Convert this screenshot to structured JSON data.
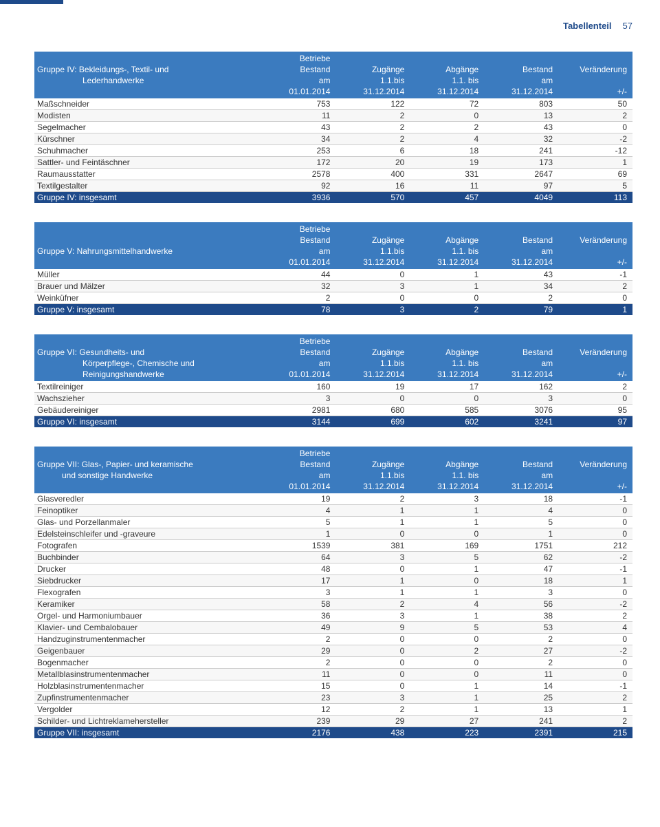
{
  "page": {
    "section": "Tabellenteil",
    "number": "57"
  },
  "header": {
    "betriebe": "Betriebe",
    "bestand_am": "Bestand am",
    "zugaenge": "Zugänge 1.1.bis",
    "abgaenge": "Abgänge 1.1. bis",
    "veraenderung": "Veränderung",
    "d1": "01.01.2014",
    "d2": "31.12.2014",
    "pm": "+/-"
  },
  "groups": [
    {
      "title_lines": [
        "Gruppe IV: Bekleidungs-, Textil- und",
        "Lederhandwerke"
      ],
      "indent_class": "indent",
      "rows": [
        [
          "Maßschneider",
          "753",
          "122",
          "72",
          "803",
          "50"
        ],
        [
          "Modisten",
          "11",
          "2",
          "0",
          "13",
          "2"
        ],
        [
          "Segelmacher",
          "43",
          "2",
          "2",
          "43",
          "0"
        ],
        [
          "Kürschner",
          "34",
          "2",
          "4",
          "32",
          "-2"
        ],
        [
          "Schuhmacher",
          "253",
          "6",
          "18",
          "241",
          "-12"
        ],
        [
          "Sattler- und Feintäschner",
          "172",
          "20",
          "19",
          "173",
          "1"
        ],
        [
          "Raumausstatter",
          "2578",
          "400",
          "331",
          "2647",
          "69"
        ],
        [
          "Textilgestalter",
          "92",
          "16",
          "11",
          "97",
          "5"
        ]
      ],
      "total": [
        "Gruppe IV: insgesamt",
        "3936",
        "570",
        "457",
        "4049",
        "113"
      ]
    },
    {
      "title_lines": [
        "Gruppe V: Nahrungsmittelhandwerke"
      ],
      "indent_class": "",
      "rows": [
        [
          "Müller",
          "44",
          "0",
          "1",
          "43",
          "-1"
        ],
        [
          "Brauer und Mälzer",
          "32",
          "3",
          "1",
          "34",
          "2"
        ],
        [
          "Weinküfner",
          "2",
          "0",
          "0",
          "2",
          "0"
        ]
      ],
      "total": [
        "Gruppe V: insgesamt",
        "78",
        "3",
        "2",
        "79",
        "1"
      ]
    },
    {
      "title_lines": [
        "Gruppe VI: Gesundheits- und",
        "Körperpflege-, Chemische und",
        "Reinigungshandwerke"
      ],
      "indent_class": "indent",
      "rows": [
        [
          "Textilreiniger",
          "160",
          "19",
          "17",
          "162",
          "2"
        ],
        [
          "Wachszieher",
          "3",
          "0",
          "0",
          "3",
          "0"
        ],
        [
          "Gebäudereiniger",
          "2981",
          "680",
          "585",
          "3076",
          "95"
        ]
      ],
      "total": [
        "Gruppe VI: insgesamt",
        "3144",
        "699",
        "602",
        "3241",
        "97"
      ]
    },
    {
      "title_lines": [
        "Gruppe VII: Glas-, Papier- und keramische",
        "und sonstige Handwerke"
      ],
      "indent_class": "indent2",
      "rows": [
        [
          "Glasveredler",
          "19",
          "2",
          "3",
          "18",
          "-1"
        ],
        [
          "Feinoptiker",
          "4",
          "1",
          "1",
          "4",
          "0"
        ],
        [
          "Glas- und Porzellanmaler",
          "5",
          "1",
          "1",
          "5",
          "0"
        ],
        [
          "Edelsteinschleifer und -graveure",
          "1",
          "0",
          "0",
          "1",
          "0"
        ],
        [
          "Fotografen",
          "1539",
          "381",
          "169",
          "1751",
          "212"
        ],
        [
          "Buchbinder",
          "64",
          "3",
          "5",
          "62",
          "-2"
        ],
        [
          "Drucker",
          "48",
          "0",
          "1",
          "47",
          "-1"
        ],
        [
          "Siebdrucker",
          "17",
          "1",
          "0",
          "18",
          "1"
        ],
        [
          "Flexografen",
          "3",
          "1",
          "1",
          "3",
          "0"
        ],
        [
          "Keramiker",
          "58",
          "2",
          "4",
          "56",
          "-2"
        ],
        [
          "Orgel- und Harmoniumbauer",
          "36",
          "3",
          "1",
          "38",
          "2"
        ],
        [
          "Klavier- und Cembalobauer",
          "49",
          "9",
          "5",
          "53",
          "4"
        ],
        [
          "Handzuginstrumentenmacher",
          "2",
          "0",
          "0",
          "2",
          "0"
        ],
        [
          "Geigenbauer",
          "29",
          "0",
          "2",
          "27",
          "-2"
        ],
        [
          "Bogenmacher",
          "2",
          "0",
          "0",
          "2",
          "0"
        ],
        [
          "Metallblasinstrumentenmacher",
          "11",
          "0",
          "0",
          "11",
          "0"
        ],
        [
          "Holzblasinstrumentenmacher",
          "15",
          "0",
          "1",
          "14",
          "-1"
        ],
        [
          "Zupfinstrumentenmacher",
          "23",
          "3",
          "1",
          "25",
          "2"
        ],
        [
          "Vergolder",
          "12",
          "2",
          "1",
          "13",
          "1"
        ],
        [
          "Schilder- und Lichtreklamehersteller",
          "239",
          "29",
          "27",
          "241",
          "2"
        ]
      ],
      "total": [
        "Gruppe VII: insgesamt",
        "2176",
        "438",
        "223",
        "2391",
        "215"
      ]
    }
  ]
}
